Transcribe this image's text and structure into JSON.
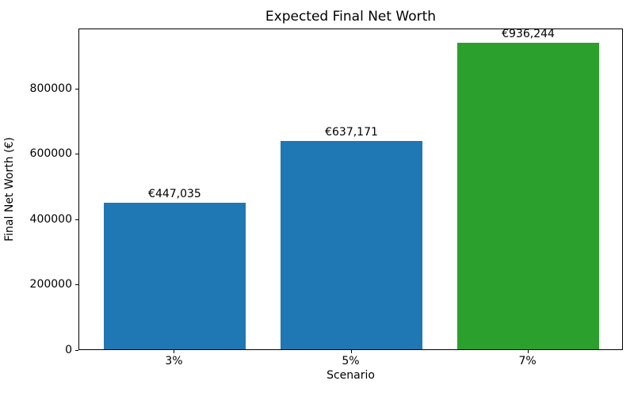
{
  "chart_data": {
    "type": "bar",
    "title": "Expected Final Net Worth",
    "xlabel": "Scenario",
    "ylabel": "Final Net Worth (€)",
    "categories": [
      "3%",
      "5%",
      "7%"
    ],
    "values": [
      447035,
      637171,
      936244
    ],
    "bar_labels": [
      "€447,035",
      "€637,171",
      "€936,244"
    ],
    "bar_colors": [
      "#1f77b4",
      "#1f77b4",
      "#2ca02c"
    ],
    "ylim": [
      0,
      983056
    ],
    "yticks": [
      0,
      200000,
      400000,
      600000,
      800000
    ],
    "ytick_labels": [
      "0",
      "200000",
      "400000",
      "600000",
      "800000"
    ],
    "grid": false,
    "legend_position": "none",
    "bar_width_fraction": 0.8
  }
}
